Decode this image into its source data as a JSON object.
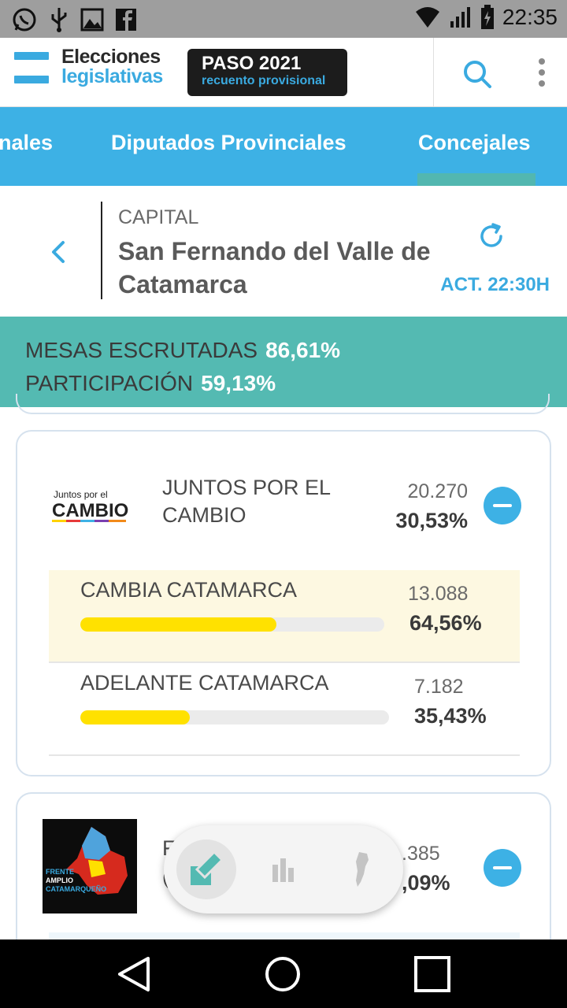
{
  "status_bar": {
    "time": "22:35",
    "left_icons": [
      "whatsapp-icon",
      "usb-icon",
      "image-icon",
      "facebook-icon"
    ],
    "right_icons": [
      "wifi-icon",
      "signal-icon",
      "battery-icon"
    ]
  },
  "header": {
    "logo_line1": "Elecciones",
    "logo_line2": "legislativas",
    "badge_title": "PASO 2021",
    "badge_subtitle": "recuento provisional",
    "icons": [
      "search-icon",
      "more-vert-icon"
    ]
  },
  "tabs": [
    {
      "label": "nales",
      "active": false
    },
    {
      "label": "Diputados Provinciales",
      "active": false
    },
    {
      "label": "Concejales",
      "active": true
    }
  ],
  "location": {
    "subtitle": "CAPITAL",
    "title": "San Fernando del Valle de Catamarca",
    "updated": "ACT. 22:30H"
  },
  "stats": {
    "mesas_label": "MESAS ESCRUTADAS",
    "mesas_value": "86,61%",
    "participacion_label": "PARTICIPACIÓN",
    "participacion_value": "59,13%"
  },
  "parties": [
    {
      "logo_text_small": "Juntos por el",
      "logo_text_big": "CAMBIO",
      "name": "JUNTOS POR EL CAMBIO",
      "votes": "20.270",
      "percent": "30,53%",
      "lists": [
        {
          "name": "CAMBIA CATAMARCA",
          "votes": "13.088",
          "percent": "64,56%",
          "share": 0.6456,
          "highlight": true
        },
        {
          "name": "ADELANTE CATAMARCA",
          "votes": "7.182",
          "percent": "35,43%",
          "share": 0.3543,
          "highlight": false
        }
      ]
    },
    {
      "logo_text": [
        "FRENTE",
        "AMPLIO",
        "CATAMARQUEÑO"
      ],
      "name_fragment_1": "F",
      "name_fragment_2": "(",
      "votes_fragment": ".385",
      "percent_fragment": ",09%"
    }
  ],
  "floating_menu": {
    "items": [
      "vote-icon",
      "bar-chart-icon",
      "argentina-map-icon"
    ],
    "active": 0
  },
  "nav_bar": [
    "back-icon",
    "home-icon",
    "recents-icon"
  ],
  "colors": {
    "accent_blue": "#3db1e5",
    "teal": "#54bab2",
    "bar_yellow": "#ffe100",
    "highlight_row": "#fdf8e1"
  }
}
